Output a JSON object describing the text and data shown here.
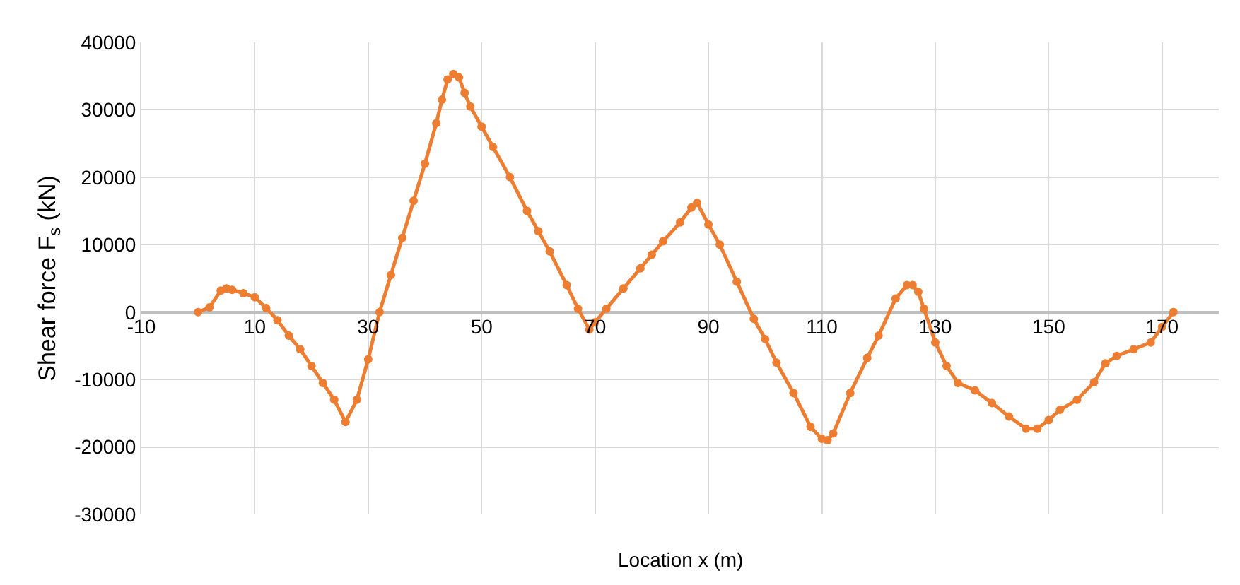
{
  "chart_data": {
    "type": "line",
    "xlabel": "Location x (m)",
    "ylabel": "Shear force F$_{s}$ (kN)",
    "xlim": [
      -10,
      180
    ],
    "xticks": [
      -10,
      10,
      30,
      50,
      70,
      90,
      110,
      130,
      150,
      170
    ],
    "ylim": [
      -30000,
      40000
    ],
    "yticks": [
      -30000,
      -20000,
      -10000,
      0,
      10000,
      20000,
      30000,
      40000
    ],
    "grid": true,
    "marker": "circle",
    "line_style": "solid",
    "series": [
      {
        "color": "#ed7d31",
        "x": [
          0,
          2,
          4,
          5,
          6,
          8,
          10,
          12,
          14,
          16,
          18,
          20,
          22,
          24,
          26,
          28,
          30,
          32,
          34,
          36,
          38,
          40,
          42,
          43,
          44,
          45,
          46,
          47,
          48,
          50,
          52,
          55,
          58,
          60,
          62,
          65,
          67,
          69,
          70,
          72,
          75,
          78,
          80,
          82,
          85,
          87,
          88,
          90,
          92,
          95,
          98,
          100,
          102,
          105,
          108,
          110,
          111,
          112,
          115,
          118,
          120,
          123,
          125,
          126,
          127,
          128,
          130,
          132,
          134,
          137,
          140,
          143,
          146,
          148,
          150,
          152,
          155,
          158,
          160,
          162,
          165,
          168,
          170,
          172
        ],
        "values": [
          0,
          700,
          3200,
          3500,
          3300,
          2800,
          2200,
          600,
          -1200,
          -3500,
          -5500,
          -8000,
          -10500,
          -13000,
          -16300,
          -13000,
          -7000,
          0,
          5500,
          11000,
          16500,
          22000,
          28000,
          31500,
          34500,
          35300,
          34800,
          32500,
          30500,
          27500,
          24500,
          20000,
          15000,
          12000,
          9000,
          4000,
          500,
          -2600,
          -1500,
          500,
          3500,
          6500,
          8500,
          10500,
          13300,
          15500,
          16200,
          13000,
          10000,
          4500,
          -1000,
          -4000,
          -7500,
          -12000,
          -17000,
          -18800,
          -19000,
          -18000,
          -12000,
          -6800,
          -3500,
          2000,
          4000,
          4000,
          3000,
          500,
          -4500,
          -8000,
          -10500,
          -11600,
          -13500,
          -15500,
          -17300,
          -17300,
          -16000,
          -14500,
          -13000,
          -10400,
          -7600,
          -6500,
          -5500,
          -4500,
          -2200,
          0
        ]
      }
    ]
  }
}
